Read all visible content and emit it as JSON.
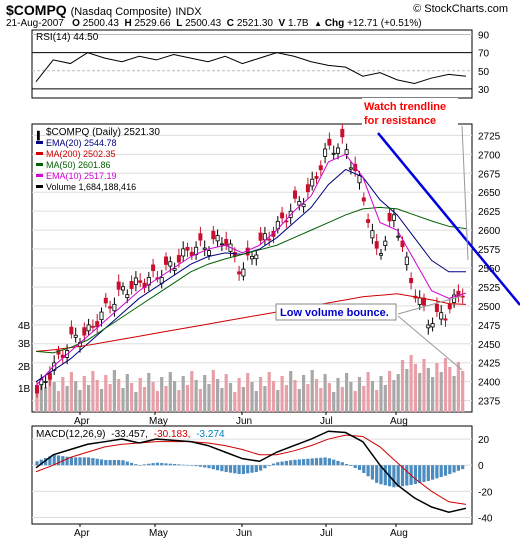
{
  "header": {
    "symbol": "$COMPQ",
    "name": "(Nasdaq Composite)",
    "exchange": "INDX",
    "watermark": "© StockCharts.com",
    "date": "21-Aug-2007",
    "open_label": "O",
    "open": "2500.43",
    "high_label": "H",
    "high": "2529.66",
    "low_label": "L",
    "low": "2500.43",
    "close_label": "C",
    "close": "2521.30",
    "volume_label": "V",
    "volume": "1.7B",
    "chg_label": "Chg",
    "chg": "+12.71 (+0.51%)",
    "chg_icon": "up-triangle-icon"
  },
  "rsi": {
    "label": "RSI(14) 44.50",
    "levels": [
      "90",
      "70",
      "50",
      "30"
    ]
  },
  "price_panel": {
    "legend": [
      {
        "text": "$COMPQ (Daily) 2521.30",
        "color": "#000000"
      },
      {
        "text": "EMA(20) 2544.78",
        "color": "#000080"
      },
      {
        "text": "MA(200) 2502.35",
        "color": "#d00000"
      },
      {
        "text": "MA(50) 2601.86",
        "color": "#006000"
      },
      {
        "text": "EMA(10) 2517.19",
        "color": "#d000d0"
      },
      {
        "text": "Volume 1,684,188,416",
        "color": "#000000"
      }
    ],
    "annotation_trend": [
      "Watch trendline",
      "for resistance"
    ],
    "annotation_volume": "Low volume bounce."
  },
  "macd": {
    "label": "MACD(12,26,9)",
    "v1": "-33.457,",
    "v2": "-30.183,",
    "v3": "-3.274"
  },
  "colors": {
    "ema20": "#000080",
    "ma200": "#d00000",
    "ma50": "#006000",
    "ema10": "#d000d0",
    "trendline": "#0000e0",
    "volume_up": "#a8a8a8",
    "volume_down": "#e8a0a8",
    "candle_up": "#000000",
    "candle_down": "#c8102e",
    "annotation_red": "#ff0000",
    "annotation_blue": "#0000cc"
  },
  "chart_data": [
    {
      "type": "line",
      "title": "RSI(14)",
      "yticks": [
        90,
        70,
        50,
        30
      ],
      "ylim": [
        20,
        95
      ],
      "x": [
        0,
        4,
        8,
        12,
        16,
        20,
        24,
        28,
        32,
        36,
        40,
        44,
        48,
        52,
        56,
        60,
        64,
        68,
        72,
        76,
        80,
        84,
        88,
        92,
        96,
        100
      ],
      "values": [
        38,
        62,
        58,
        70,
        64,
        60,
        66,
        62,
        68,
        64,
        60,
        66,
        58,
        64,
        70,
        66,
        60,
        56,
        54,
        44,
        48,
        40,
        36,
        42,
        46,
        44
      ]
    },
    {
      "type": "line",
      "title": "$COMPQ (Daily) 2521.30",
      "x_tick_labels": [
        "Apr",
        "May",
        "Jun",
        "Jul",
        "Aug"
      ],
      "yticks": [
        2725,
        2700,
        2675,
        2650,
        2625,
        2600,
        2575,
        2550,
        2525,
        2500,
        2475,
        2450,
        2425,
        2400,
        2375
      ],
      "ylim": [
        2360,
        2740
      ],
      "volume_ticks": [
        "4B",
        "3B",
        "2B",
        "1B"
      ],
      "x": [
        0,
        4,
        8,
        12,
        16,
        20,
        24,
        28,
        32,
        36,
        40,
        44,
        48,
        52,
        56,
        60,
        64,
        68,
        72,
        76,
        80,
        84,
        88,
        92,
        96,
        100
      ],
      "series": [
        {
          "name": "$COMPQ",
          "values": [
            2385,
            2420,
            2455,
            2465,
            2495,
            2520,
            2530,
            2540,
            2555,
            2575,
            2580,
            2590,
            2545,
            2580,
            2600,
            2630,
            2650,
            2705,
            2715,
            2660,
            2565,
            2620,
            2530,
            2480,
            2490,
            2521
          ]
        },
        {
          "name": "EMA(20)",
          "values": [
            2400,
            2415,
            2430,
            2450,
            2470,
            2490,
            2510,
            2525,
            2540,
            2555,
            2565,
            2570,
            2568,
            2575,
            2590,
            2610,
            2630,
            2660,
            2680,
            2670,
            2640,
            2620,
            2590,
            2560,
            2545,
            2545
          ]
        },
        {
          "name": "MA(200)",
          "values": [
            2440,
            2442,
            2445,
            2448,
            2452,
            2456,
            2460,
            2464,
            2468,
            2472,
            2476,
            2480,
            2484,
            2488,
            2492,
            2496,
            2500,
            2504,
            2508,
            2512,
            2514,
            2516,
            2512,
            2508,
            2503,
            2502
          ]
        },
        {
          "name": "MA(50)",
          "values": [
            2440,
            2438,
            2445,
            2455,
            2470,
            2485,
            2500,
            2515,
            2530,
            2545,
            2555,
            2562,
            2568,
            2574,
            2580,
            2590,
            2600,
            2610,
            2620,
            2628,
            2630,
            2628,
            2620,
            2612,
            2605,
            2602
          ]
        },
        {
          "name": "EMA(10)",
          "values": [
            2395,
            2420,
            2440,
            2460,
            2480,
            2500,
            2520,
            2535,
            2550,
            2565,
            2575,
            2580,
            2570,
            2580,
            2600,
            2625,
            2645,
            2690,
            2700,
            2670,
            2610,
            2600,
            2560,
            2520,
            2510,
            2517
          ]
        }
      ]
    },
    {
      "type": "line",
      "title": "MACD(12,26,9)",
      "yticks": [
        20,
        0,
        -20,
        -40
      ],
      "ylim": [
        -45,
        30
      ],
      "x_tick_labels": [
        "Apr",
        "May",
        "Jun",
        "Jul",
        "Aug"
      ],
      "x": [
        0,
        4,
        8,
        12,
        16,
        20,
        24,
        28,
        32,
        36,
        40,
        44,
        48,
        52,
        56,
        60,
        64,
        68,
        72,
        76,
        80,
        84,
        88,
        92,
        96,
        100
      ],
      "series": [
        {
          "name": "MACD",
          "values": [
            -2,
            8,
            12,
            16,
            18,
            20,
            17,
            20,
            19,
            18,
            15,
            10,
            5,
            3,
            10,
            15,
            20,
            26,
            25,
            18,
            0,
            -15,
            -25,
            -32,
            -36,
            -33
          ]
        },
        {
          "name": "Signal",
          "values": [
            -5,
            0,
            6,
            10,
            14,
            16,
            17,
            18,
            18,
            18,
            17,
            15,
            12,
            8,
            8,
            11,
            15,
            20,
            23,
            22,
            14,
            2,
            -10,
            -20,
            -28,
            -30
          ]
        },
        {
          "name": "Histogram",
          "values": [
            3,
            8,
            6,
            6,
            4,
            4,
            0,
            2,
            1,
            0,
            -2,
            -5,
            -7,
            -5,
            2,
            4,
            5,
            6,
            2,
            -4,
            -14,
            -17,
            -15,
            -12,
            -8,
            -3
          ]
        }
      ]
    }
  ]
}
